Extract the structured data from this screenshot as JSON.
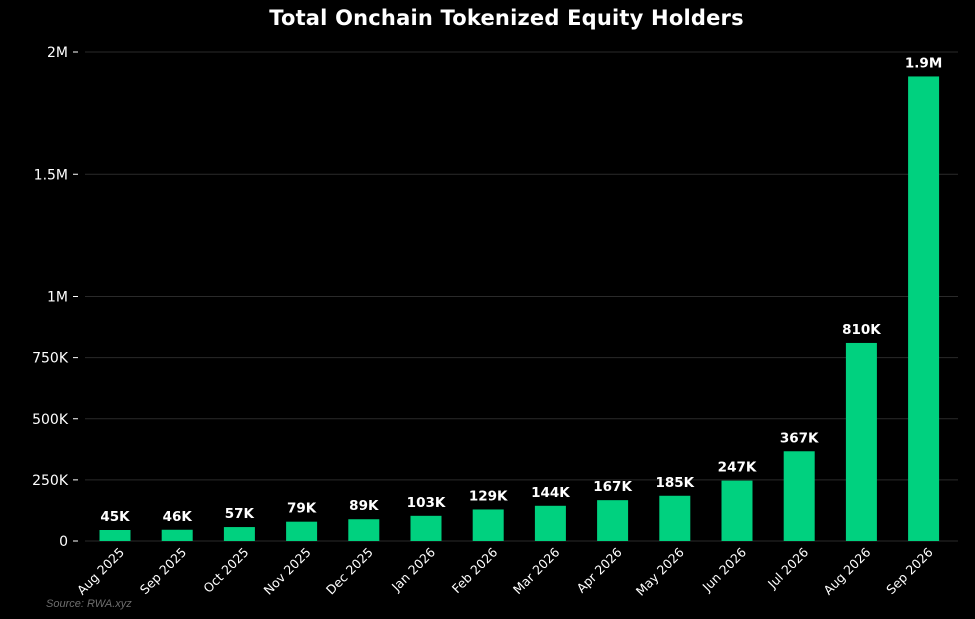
{
  "colors": {
    "background": "#000000",
    "bar": "#00d17f",
    "grid": "#2a2a2a",
    "text": "#ffffff",
    "source_text": "#6f6f6f"
  },
  "source": "Source: RWA.xyz",
  "chart_data": {
    "type": "bar",
    "title": "Total Onchain Tokenized Equity Holders",
    "xlabel": "",
    "ylabel": "",
    "ylim": [
      0,
      2000000
    ],
    "y_ticks": [
      0,
      250000,
      500000,
      750000,
      1000000,
      1500000,
      2000000
    ],
    "y_tick_labels": [
      "0",
      "250K",
      "500K",
      "750K",
      "1M",
      "1.5M",
      "2M"
    ],
    "grid": true,
    "categories": [
      "Aug 2025",
      "Sep 2025",
      "Oct 2025",
      "Nov 2025",
      "Dec 2025",
      "Jan 2026",
      "Feb 2026",
      "Mar 2026",
      "Apr 2026",
      "May 2026",
      "Jun 2026",
      "Jul 2026",
      "Aug 2026",
      "Sep 2026"
    ],
    "values": [
      45000,
      46000,
      57000,
      79000,
      89000,
      103000,
      129000,
      144000,
      167000,
      185000,
      247000,
      367000,
      810000,
      1900000
    ],
    "value_labels": [
      "45K",
      "46K",
      "57K",
      "79K",
      "89K",
      "103K",
      "129K",
      "144K",
      "167K",
      "185K",
      "247K",
      "367K",
      "810K",
      "1.9M"
    ]
  }
}
